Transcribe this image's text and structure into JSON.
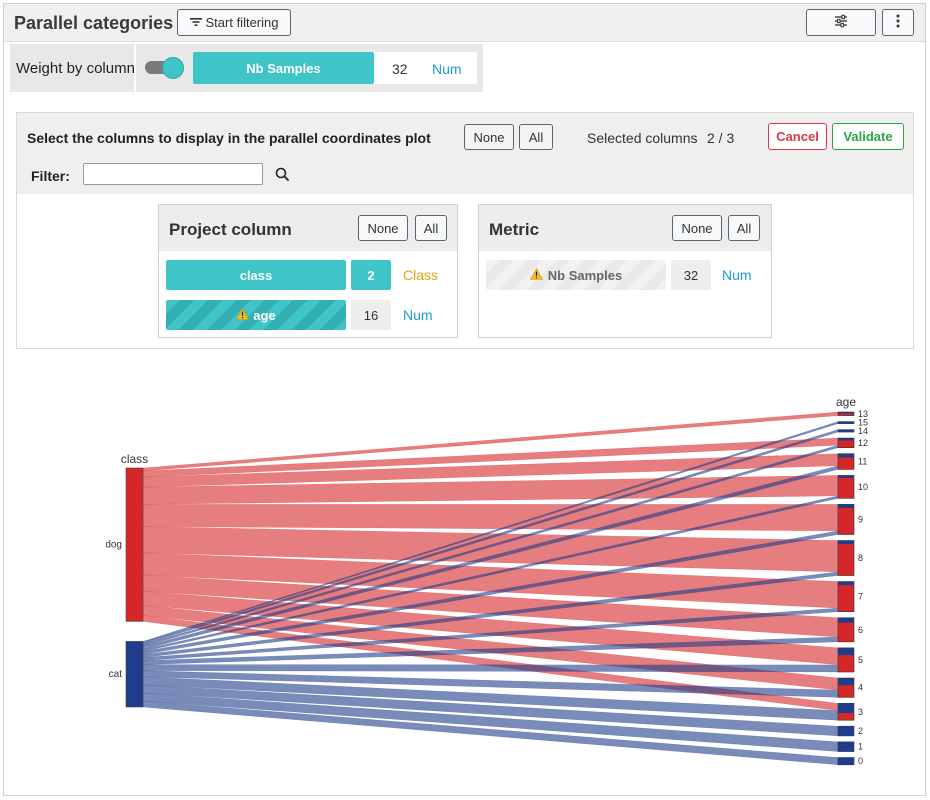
{
  "header": {
    "title": "Parallel categories",
    "filter_button": "Start filtering",
    "settings_icon": "sliders-icon",
    "menu_icon": "kebab-icon"
  },
  "weight": {
    "label": "Weight by column",
    "enabled": true,
    "column": "Nb Samples",
    "count": "32",
    "type": "Num"
  },
  "selector": {
    "title": "Select the columns to display in the parallel coordinates plot",
    "none": "None",
    "all": "All",
    "selected_label": "Selected columns",
    "selected_value": "2 / 3",
    "cancel": "Cancel",
    "validate": "Validate",
    "filter_label": "Filter:",
    "filter_value": ""
  },
  "project_panel": {
    "title": "Project column",
    "none": "None",
    "all": "All",
    "rows": [
      {
        "name": "class",
        "count": "2",
        "type": "Class",
        "warning": false
      },
      {
        "name": "age",
        "count": "16",
        "type": "Num",
        "warning": true
      }
    ]
  },
  "metric_panel": {
    "title": "Metric",
    "none": "None",
    "all": "All",
    "rows": [
      {
        "name": "Nb Samples",
        "count": "32",
        "type": "Num",
        "warning": true
      }
    ]
  },
  "colors": {
    "accent": "#3fc4c7",
    "class_type": "#e8a317",
    "num_type": "#1a9bd7",
    "dog": "#d62728",
    "cat": "#1f3d8a",
    "cancel": "#dc3545",
    "validate": "#28a745"
  },
  "chart_data": {
    "type": "parallel_categories",
    "dimensions": [
      {
        "label": "class",
        "categories": [
          "dog",
          "cat"
        ],
        "counts": [
          19,
          10
        ]
      },
      {
        "label": "age",
        "categories": [
          "13",
          "15",
          "14",
          "12",
          "11",
          "10",
          "9",
          "8",
          "7",
          "6",
          "5",
          "4",
          "3",
          "2",
          "1",
          "0"
        ]
      }
    ],
    "links": [
      {
        "from": "dog",
        "to": "13",
        "value": 0.3
      },
      {
        "from": "dog",
        "to": "12",
        "value": 0.6
      },
      {
        "from": "dog",
        "to": "11",
        "value": 1.0
      },
      {
        "from": "dog",
        "to": "10",
        "value": 1.7
      },
      {
        "from": "dog",
        "to": "9",
        "value": 2.2
      },
      {
        "from": "dog",
        "to": "8",
        "value": 2.6
      },
      {
        "from": "dog",
        "to": "7",
        "value": 2.2
      },
      {
        "from": "dog",
        "to": "6",
        "value": 1.6
      },
      {
        "from": "dog",
        "to": "5",
        "value": 1.4
      },
      {
        "from": "dog",
        "to": "4",
        "value": 1.0
      },
      {
        "from": "dog",
        "to": "3",
        "value": 0.6
      },
      {
        "from": "cat",
        "to": "15",
        "value": 0.1
      },
      {
        "from": "cat",
        "to": "14",
        "value": 0.2
      },
      {
        "from": "cat",
        "to": "12",
        "value": 0.2
      },
      {
        "from": "cat",
        "to": "11",
        "value": 0.3
      },
      {
        "from": "cat",
        "to": "10",
        "value": 0.2
      },
      {
        "from": "cat",
        "to": "9",
        "value": 0.3
      },
      {
        "from": "cat",
        "to": "8",
        "value": 0.3
      },
      {
        "from": "cat",
        "to": "7",
        "value": 0.3
      },
      {
        "from": "cat",
        "to": "6",
        "value": 0.4
      },
      {
        "from": "cat",
        "to": "5",
        "value": 0.6
      },
      {
        "from": "cat",
        "to": "4",
        "value": 0.6
      },
      {
        "from": "cat",
        "to": "3",
        "value": 0.8
      },
      {
        "from": "cat",
        "to": "2",
        "value": 0.8
      },
      {
        "from": "cat",
        "to": "1",
        "value": 0.8
      },
      {
        "from": "cat",
        "to": "0",
        "value": 0.6
      }
    ]
  }
}
